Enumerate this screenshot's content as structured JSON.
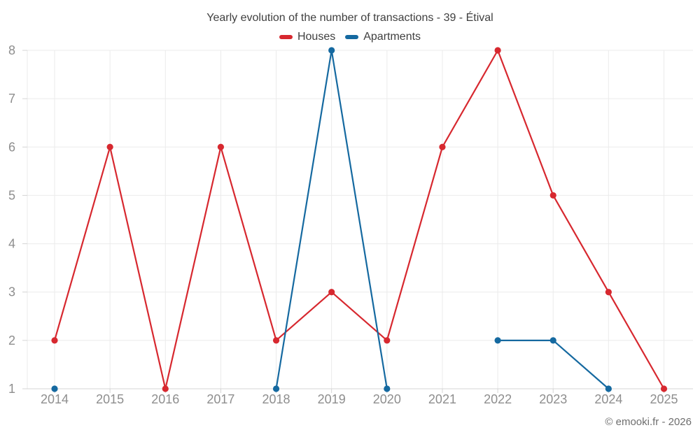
{
  "chart_data": {
    "type": "line",
    "title": "Yearly evolution of the number of transactions - 39 - Étival",
    "footer": "© emooki.fr - 2026",
    "x": [
      2014,
      2015,
      2016,
      2017,
      2018,
      2019,
      2020,
      2021,
      2022,
      2023,
      2024,
      2025
    ],
    "series": [
      {
        "name": "Houses",
        "color": "#d7282f",
        "values": [
          2,
          6,
          1,
          6,
          2,
          3,
          2,
          6,
          8,
          5,
          3,
          1
        ]
      },
      {
        "name": "Apartments",
        "color": "#1569a0",
        "values": [
          1,
          null,
          null,
          null,
          1,
          8,
          1,
          null,
          2,
          2,
          1,
          null
        ]
      }
    ],
    "ylim": [
      1,
      8
    ],
    "yticks": [
      1,
      2,
      3,
      4,
      5,
      6,
      7,
      8
    ],
    "grid": true,
    "legend_position": "top",
    "colors": {
      "grid_line": "#ebebeb",
      "axis_line": "#d4d4d4",
      "tick_mark": "#d4d4d4",
      "tick_label": "#8e8e8e",
      "title_text": "#3f3f3f",
      "footer_text": "#6e6e6e",
      "background": "#ffffff"
    }
  }
}
